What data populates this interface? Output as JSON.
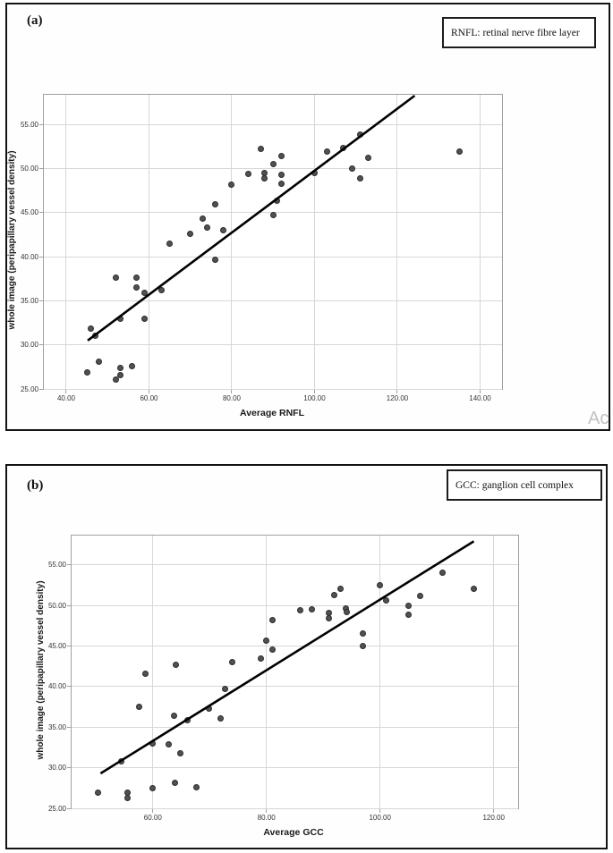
{
  "watermark": "Act",
  "colors": {
    "dot_fill": "#515151",
    "dot_edge": "#2c2c2c",
    "fit_line": "#000000",
    "gridline": "#d7d7d7",
    "plot_border": "#a0a0a0",
    "panel_border": "#141414",
    "tick_text": "#333333",
    "watermark_text": "#c2c2c2"
  },
  "chart_data": [
    {
      "type": "scatter",
      "panel_label": "(a)",
      "legend": "RNFL: retinal nerve fibre layer",
      "xlabel": "Average RNFL",
      "ylabel": "whole image (peripapillary vessel density)",
      "x_tick_values": [
        40,
        60,
        80,
        100,
        120,
        140
      ],
      "x_tick_labels": [
        "40.00",
        "60.00",
        "80.00",
        "100.00",
        "120.00",
        "140.00"
      ],
      "y_tick_values": [
        25,
        30,
        35,
        40,
        45,
        50,
        55
      ],
      "y_tick_labels": [
        "25.00",
        "30.00",
        "35.00",
        "40.00",
        "45.00",
        "50.00",
        "55.00"
      ],
      "xlim": [
        34.6,
        145.3
      ],
      "ylim": [
        25,
        58.4
      ],
      "grid": true,
      "legend_position": "top-right-outside",
      "fit_line": {
        "x1": 45.2,
        "y1": 30.5,
        "x2": 124.2,
        "y2": 58.3
      },
      "points": [
        [
          45,
          26.9
        ],
        [
          48,
          28.1
        ],
        [
          52,
          26.1
        ],
        [
          53,
          26.6
        ],
        [
          53,
          27.4
        ],
        [
          56,
          27.6
        ],
        [
          46,
          31.9
        ],
        [
          47,
          31.0
        ],
        [
          52,
          37.6
        ],
        [
          53,
          33.0
        ],
        [
          57,
          37.6
        ],
        [
          57,
          36.5
        ],
        [
          59,
          35.9
        ],
        [
          59,
          33.0
        ],
        [
          63,
          36.2
        ],
        [
          65,
          41.5
        ],
        [
          70,
          42.6
        ],
        [
          73,
          44.3
        ],
        [
          74,
          43.3
        ],
        [
          76,
          46.0
        ],
        [
          76,
          39.7
        ],
        [
          78,
          43.0
        ],
        [
          80,
          48.2
        ],
        [
          84,
          49.4
        ],
        [
          87,
          52.3
        ],
        [
          88,
          49.5
        ],
        [
          88,
          48.9
        ],
        [
          90,
          50.5
        ],
        [
          90,
          44.7
        ],
        [
          91,
          46.4
        ],
        [
          92,
          51.4
        ],
        [
          92,
          49.3
        ],
        [
          92,
          48.3
        ],
        [
          100,
          49.5
        ],
        [
          103,
          52.0
        ],
        [
          107,
          52.4
        ],
        [
          109,
          50.0
        ],
        [
          111,
          53.9
        ],
        [
          111,
          48.9
        ],
        [
          113,
          51.2
        ],
        [
          135,
          52.0
        ]
      ]
    },
    {
      "type": "scatter",
      "panel_label": "(b)",
      "legend": "GCC: ganglion cell complex",
      "xlabel": "Average GCC",
      "ylabel": "whole image (peripapillary vessel density)",
      "x_tick_values": [
        60,
        80,
        100,
        120
      ],
      "x_tick_labels": [
        "60.00",
        "80.00",
        "100.00",
        "120.00"
      ],
      "y_tick_values": [
        25,
        30,
        35,
        40,
        45,
        50,
        55
      ],
      "y_tick_labels": [
        "25.00",
        "30.00",
        "35.00",
        "40.00",
        "45.00",
        "50.00",
        "55.00"
      ],
      "xlim": [
        45.7,
        124.3
      ],
      "ylim": [
        25,
        58.6
      ],
      "grid": true,
      "legend_position": "top-right-outside",
      "fit_line": {
        "x1": 50.8,
        "y1": 29.3,
        "x2": 116.5,
        "y2": 57.9
      },
      "points": [
        [
          50.4,
          26.9
        ],
        [
          55.6,
          26.9
        ],
        [
          55.6,
          26.3
        ],
        [
          60,
          27.5
        ],
        [
          63.9,
          28.1
        ],
        [
          67.7,
          27.6
        ],
        [
          54.4,
          30.8
        ],
        [
          57.6,
          37.5
        ],
        [
          58.7,
          41.6
        ],
        [
          60,
          33.0
        ],
        [
          62.8,
          32.9
        ],
        [
          63.7,
          36.4
        ],
        [
          64,
          42.7
        ],
        [
          64.9,
          31.8
        ],
        [
          66.1,
          35.9
        ],
        [
          69.9,
          37.3
        ],
        [
          71.9,
          36.1
        ],
        [
          72.7,
          39.7
        ],
        [
          74,
          43.0
        ],
        [
          79,
          43.4
        ],
        [
          80,
          45.7
        ],
        [
          81,
          44.5
        ],
        [
          81,
          48.2
        ],
        [
          86,
          49.4
        ],
        [
          88,
          49.5
        ],
        [
          91,
          49.1
        ],
        [
          91,
          48.4
        ],
        [
          92,
          51.3
        ],
        [
          93,
          52.0
        ],
        [
          94,
          49.6
        ],
        [
          94.2,
          49.2
        ],
        [
          97,
          46.5
        ],
        [
          97,
          45.0
        ],
        [
          100,
          52.5
        ],
        [
          101,
          50.6
        ],
        [
          105,
          50.0
        ],
        [
          105,
          48.8
        ],
        [
          107,
          51.2
        ],
        [
          111,
          54.0
        ],
        [
          116.5,
          52.1
        ]
      ]
    }
  ]
}
